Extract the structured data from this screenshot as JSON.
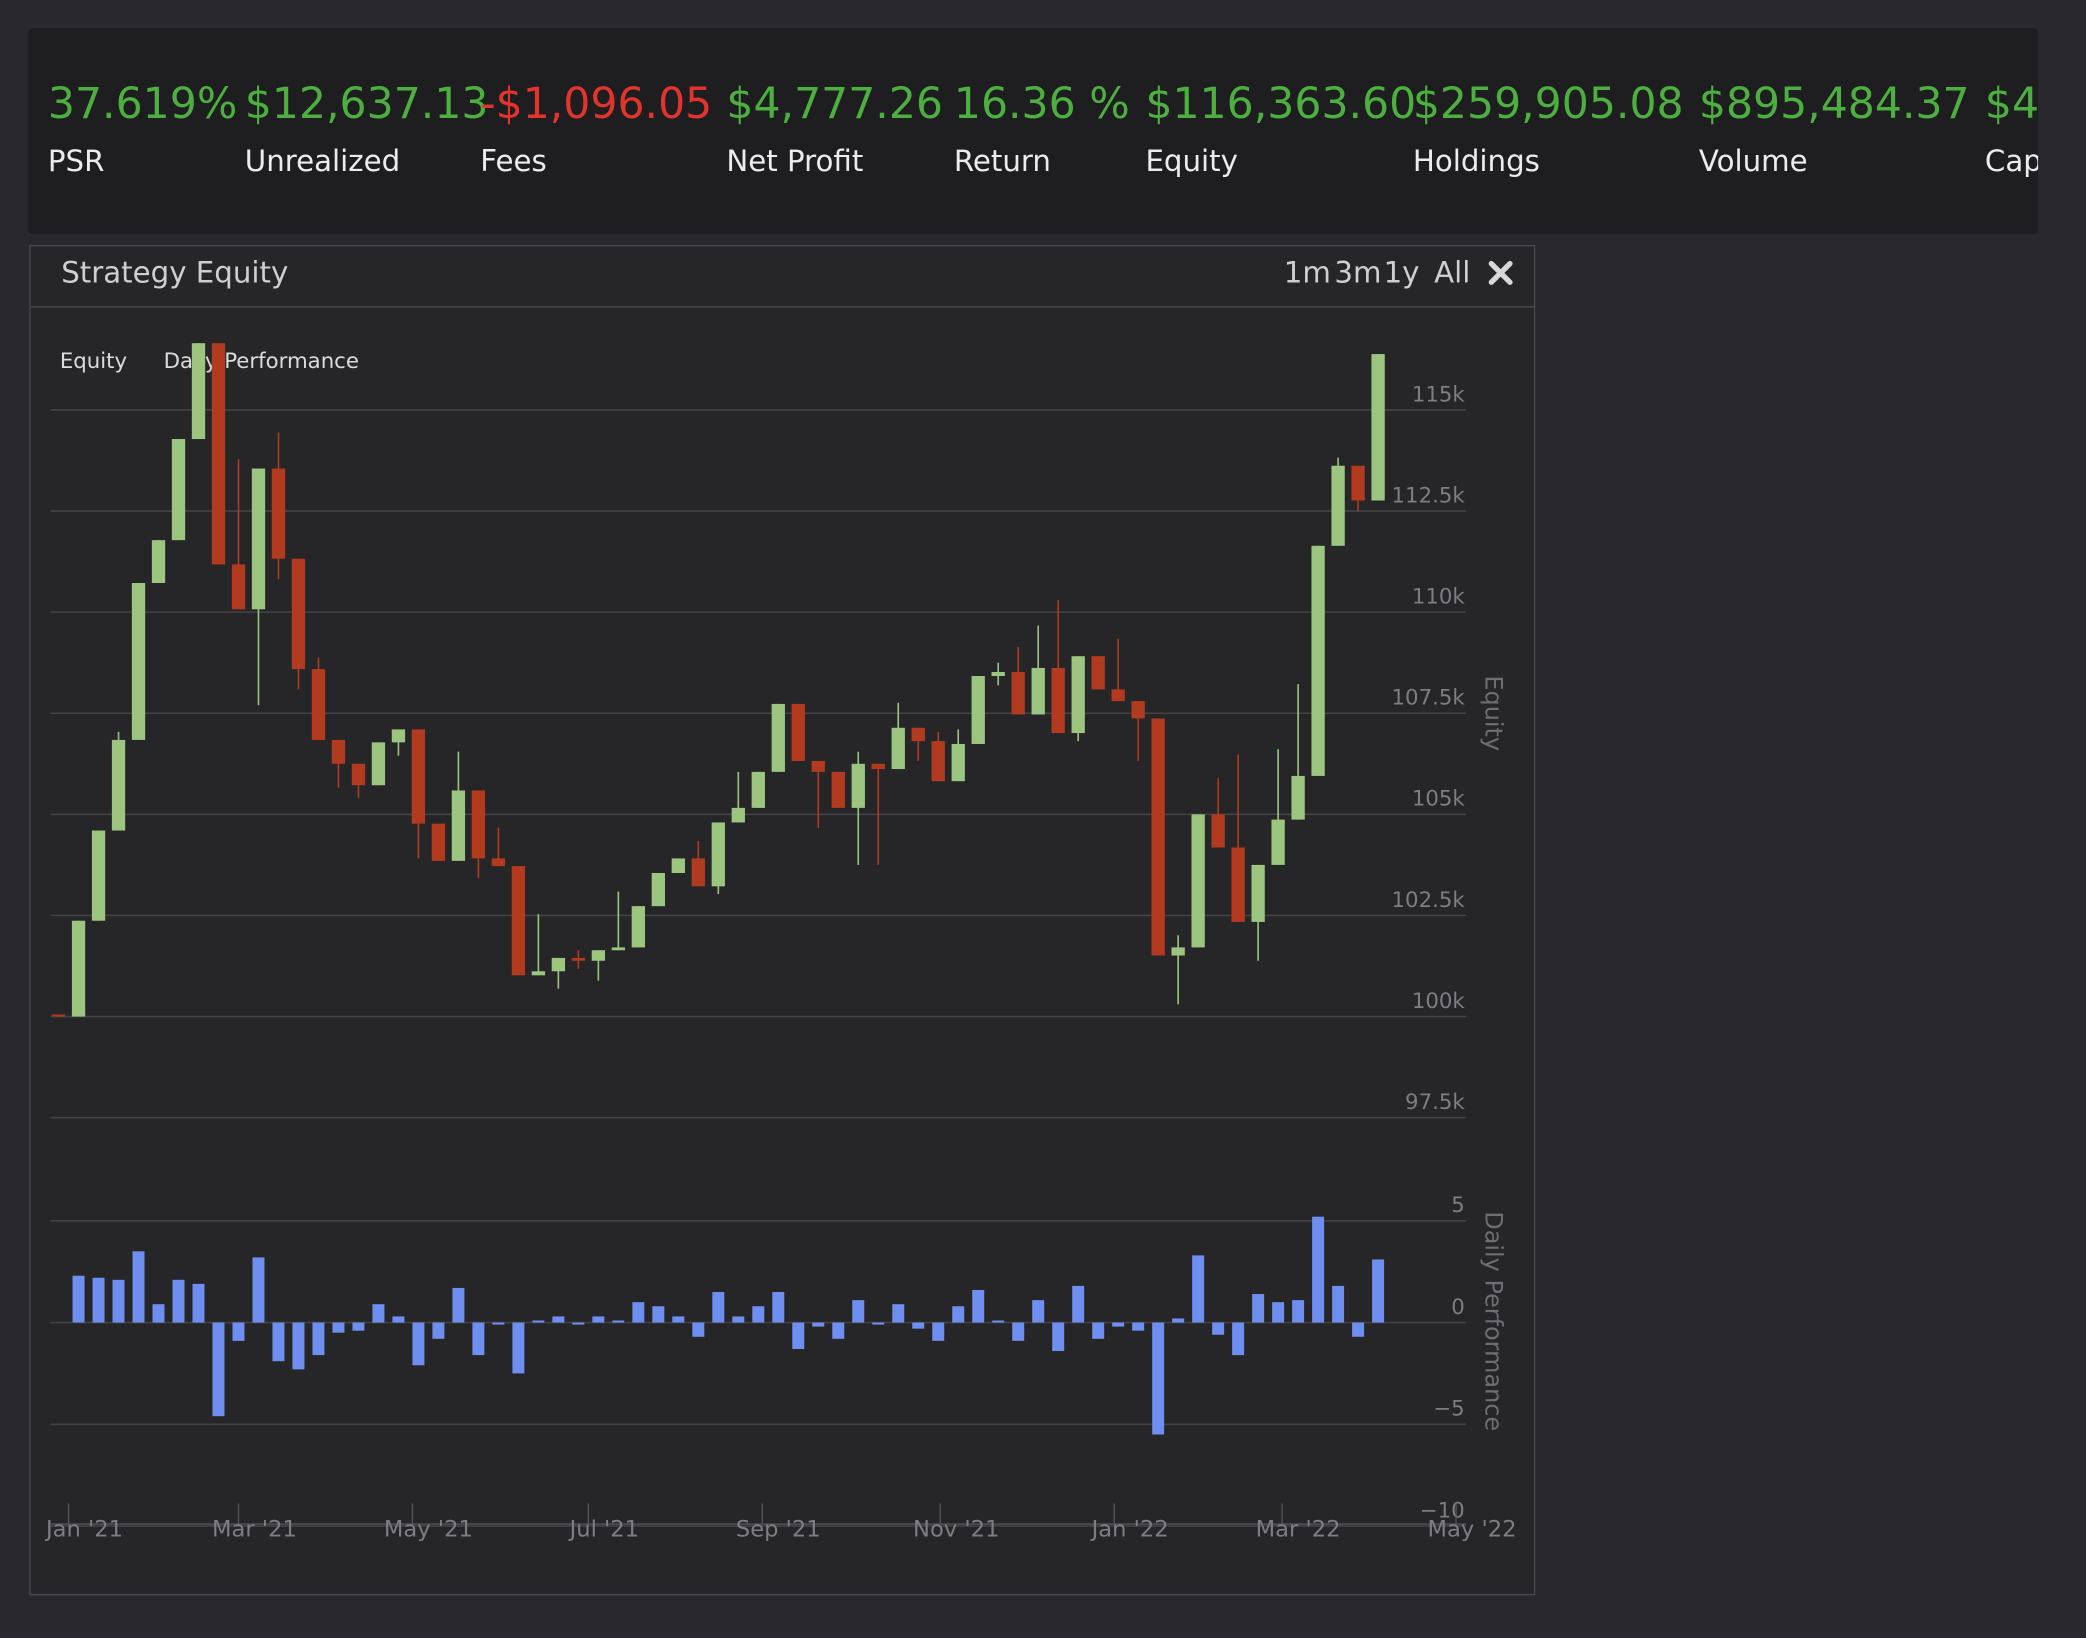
{
  "stats": [
    {
      "value": "37.619%",
      "label": "PSR",
      "color": "#4caf3f"
    },
    {
      "value": "$12,637.13",
      "label": "Unrealized",
      "color": "#4caf3f"
    },
    {
      "value": "-$1,096.05",
      "label": "Fees",
      "color": "#e0342c"
    },
    {
      "value": "$4,777.26",
      "label": "Net Profit",
      "color": "#4caf3f"
    },
    {
      "value": "16.36 %",
      "label": "Return",
      "color": "#4caf3f"
    },
    {
      "value": "$116,363.60",
      "label": "Equity",
      "color": "#4caf3f"
    },
    {
      "value": "$259,905.08",
      "label": "Holdings",
      "color": "#4caf3f"
    },
    {
      "value": "$895,484.37",
      "label": "Volume",
      "color": "#4caf3f"
    },
    {
      "value": "$4",
      "label": "Capa",
      "color": "#4caf3f"
    }
  ],
  "panel": {
    "title": "Strategy Equity",
    "ranges": [
      "1m",
      "3m",
      "1y",
      "All"
    ]
  },
  "chart_data": [
    {
      "type": "candlestick",
      "legend": "Equity",
      "y_label": "Equity",
      "up_color": "#9cc67f",
      "down_color": "#b23a1f",
      "x": [
        0,
        1,
        2,
        3,
        4,
        5,
        6,
        7,
        8,
        9,
        10,
        11,
        12,
        13,
        14,
        15,
        16,
        17,
        18,
        19,
        20,
        21,
        22,
        23,
        24,
        25,
        26,
        27,
        28,
        29,
        30,
        31,
        32,
        33,
        34,
        35,
        36,
        37,
        38,
        39,
        40,
        41,
        42,
        43,
        44,
        45,
        46,
        47,
        48,
        49,
        50,
        51,
        52,
        53,
        54,
        55,
        56,
        57,
        58,
        59,
        60,
        61,
        62,
        63,
        64,
        65,
        66
      ],
      "open": [
        100050,
        100000,
        102370,
        104600,
        106840,
        110720,
        111780,
        114280,
        116650,
        111180,
        110070,
        113550,
        111320,
        108590,
        106840,
        106250,
        105720,
        106780,
        107100,
        104770,
        103850,
        105590,
        103910,
        103720,
        101020,
        101120,
        101450,
        101380,
        101640,
        101710,
        102730,
        103550,
        103910,
        103220,
        104800,
        105160,
        106050,
        107730,
        106320,
        106050,
        105160,
        106250,
        106120,
        107140,
        106810,
        105820,
        106740,
        108420,
        108520,
        107470,
        108620,
        107010,
        108910,
        108090,
        107800,
        107370,
        101510,
        101710,
        105000,
        104180,
        102340,
        103750,
        104870,
        105950,
        111640,
        113620,
        112760
      ],
      "high": [
        100050,
        102370,
        104600,
        107040,
        110720,
        111780,
        114280,
        116650,
        116650,
        113780,
        113550,
        114440,
        111320,
        108880,
        106840,
        106250,
        106780,
        107100,
        107100,
        104770,
        106550,
        105590,
        104670,
        103720,
        102530,
        101450,
        101640,
        101640,
        103090,
        102730,
        103550,
        103910,
        104340,
        104800,
        106050,
        106050,
        107730,
        107730,
        106320,
        106050,
        106550,
        106250,
        107760,
        107140,
        107040,
        107100,
        108420,
        108750,
        109140,
        109670,
        110300,
        108910,
        108910,
        109340,
        107800,
        107370,
        102010,
        105000,
        105890,
        106480,
        103750,
        106610,
        108220,
        111640,
        113820,
        113620,
        116380
      ],
      "low": [
        100000,
        100000,
        102370,
        104600,
        106840,
        110720,
        111780,
        114280,
        111180,
        110070,
        107700,
        110820,
        108090,
        106840,
        105660,
        105400,
        105720,
        106450,
        103910,
        103850,
        103850,
        103420,
        103720,
        101020,
        101020,
        100690,
        101180,
        100890,
        101640,
        101710,
        102730,
        103550,
        103220,
        103030,
        104800,
        105160,
        106050,
        106320,
        104670,
        105160,
        103750,
        103750,
        106120,
        106320,
        105820,
        105820,
        106740,
        108190,
        107470,
        107470,
        107010,
        106810,
        108090,
        107800,
        106320,
        101510,
        100300,
        101710,
        104180,
        102340,
        101380,
        103750,
        104870,
        105950,
        111640,
        112500,
        112760
      ],
      "close": [
        100000,
        102370,
        104600,
        106840,
        110720,
        111780,
        114280,
        116650,
        111180,
        110070,
        113550,
        111320,
        108590,
        106840,
        106250,
        105720,
        106780,
        107100,
        104770,
        103850,
        105590,
        103910,
        103720,
        101020,
        101120,
        101450,
        101380,
        101640,
        101710,
        102730,
        103550,
        103910,
        103220,
        104800,
        105160,
        106050,
        107730,
        106320,
        106050,
        105160,
        106250,
        106120,
        107140,
        106810,
        105820,
        106740,
        108420,
        108520,
        107470,
        108620,
        107010,
        108910,
        108090,
        107800,
        107370,
        101510,
        101710,
        105000,
        104180,
        102340,
        103750,
        104870,
        105950,
        111640,
        113620,
        112760,
        116380
      ],
      "xlim": [
        -0.4,
        70.4
      ],
      "ylim": [
        97500,
        117000
      ],
      "yticks": [
        {
          "value": 97500,
          "label": "97.5k"
        },
        {
          "value": 100000,
          "label": "100k"
        },
        {
          "value": 102500,
          "label": "102.5k"
        },
        {
          "value": 105000,
          "label": "105k"
        },
        {
          "value": 107500,
          "label": "107.5k"
        },
        {
          "value": 110000,
          "label": "110k"
        },
        {
          "value": 112500,
          "label": "112.5k"
        },
        {
          "value": 115000,
          "label": "115k"
        }
      ],
      "grid": true
    },
    {
      "type": "bar",
      "legend": "Daily Performance",
      "y_label": "Daily Performance",
      "color": "#6f8ff0",
      "x": [
        0,
        1,
        2,
        3,
        4,
        5,
        6,
        7,
        8,
        9,
        10,
        11,
        12,
        13,
        14,
        15,
        16,
        17,
        18,
        19,
        20,
        21,
        22,
        23,
        24,
        25,
        26,
        27,
        28,
        29,
        30,
        31,
        32,
        33,
        34,
        35,
        36,
        37,
        38,
        39,
        40,
        41,
        42,
        43,
        44,
        45,
        46,
        47,
        48,
        49,
        50,
        51,
        52,
        53,
        54,
        55,
        56,
        57,
        58,
        59,
        60,
        61,
        62,
        63,
        64,
        65,
        66
      ],
      "values": [
        null,
        2.3,
        2.2,
        2.1,
        3.5,
        0.9,
        2.1,
        1.9,
        -4.6,
        -0.9,
        3.2,
        -1.9,
        -2.3,
        -1.6,
        -0.5,
        -0.4,
        0.9,
        0.3,
        -2.1,
        -0.8,
        1.7,
        -1.6,
        -0.1,
        -2.5,
        0.1,
        0.3,
        -0.1,
        0.3,
        0.1,
        1.0,
        0.8,
        0.3,
        -0.7,
        1.5,
        0.3,
        0.8,
        1.5,
        -1.3,
        -0.2,
        -0.8,
        1.1,
        -0.1,
        0.9,
        -0.3,
        -0.9,
        0.8,
        1.6,
        0.1,
        -0.9,
        1.1,
        -1.4,
        1.8,
        -0.8,
        -0.2,
        -0.4,
        -5.5,
        0.2,
        3.3,
        -0.6,
        -1.6,
        1.4,
        1.0,
        1.1,
        5.2,
        1.8,
        -0.7,
        3.1
      ],
      "xlim": [
        -0.4,
        70.4
      ],
      "xticks": [
        {
          "value": 0.5,
          "label": "Jan '21"
        },
        {
          "value": 9,
          "label": "Mar '21"
        },
        {
          "value": 17.7,
          "label": "May '21"
        },
        {
          "value": 26.5,
          "label": "Jul '21"
        },
        {
          "value": 35.2,
          "label": "Sep '21"
        },
        {
          "value": 44.1,
          "label": "Nov '21"
        },
        {
          "value": 52.8,
          "label": "Jan '22"
        },
        {
          "value": 61.2,
          "label": "Mar '22"
        },
        {
          "value": 69.9,
          "label": "May '22"
        }
      ],
      "ylim": [
        -10,
        10
      ],
      "yticks": [
        {
          "value": -10,
          "label": "−10"
        },
        {
          "value": -5,
          "label": "−5"
        },
        0,
        5
      ],
      "grid": true
    }
  ]
}
